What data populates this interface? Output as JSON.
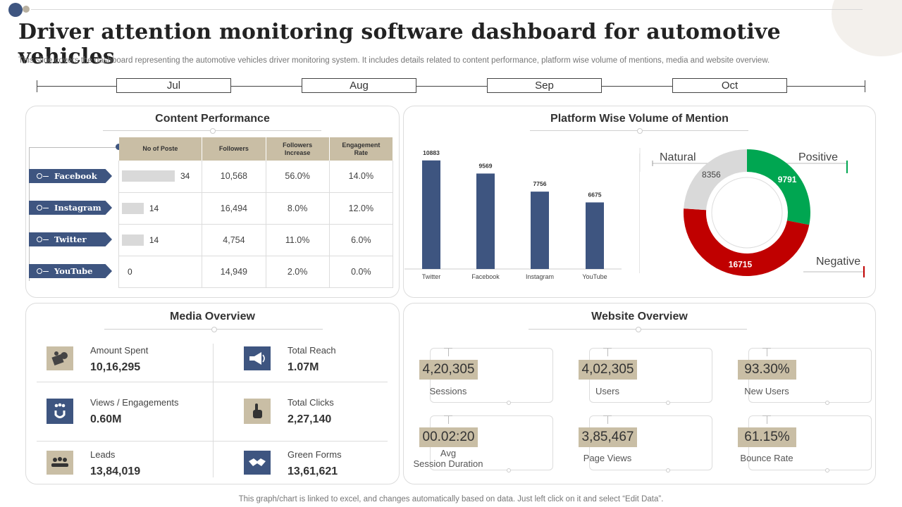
{
  "page": {
    "title": "Driver attention monitoring software dashboard for automotive vehicles",
    "subtitle": "This slide covers the dashboard representing the automotive vehicles driver monitoring system. It includes details related to content performance, platform wise volume of mentions, media and website overview.",
    "footer": "This graph/chart is linked to excel,  and changes automatically based on data. Just left click on it and select “Edit Data”."
  },
  "timeline": {
    "months": [
      "Jul",
      "Aug",
      "Sep",
      "Oct"
    ]
  },
  "content_performance": {
    "title": "Content Performance",
    "headers": [
      "No of Poste",
      "Followers",
      "Followers Increase",
      "Engagement Rate"
    ],
    "rows": [
      {
        "platform": "Facebook",
        "posts": "34",
        "posts_value": 34,
        "followers": "10,568",
        "increase": "56.0%",
        "engagement": "14.0%"
      },
      {
        "platform": "Instagram",
        "posts": "14",
        "posts_value": 14,
        "followers": "16,494",
        "increase": "8.0%",
        "engagement": "12.0%"
      },
      {
        "platform": "Twitter",
        "posts": "14",
        "posts_value": 14,
        "followers": "4,754",
        "increase": "11.0%",
        "engagement": "6.0%"
      },
      {
        "platform": "YouTube",
        "posts": "0",
        "posts_value": 0,
        "followers": "14,949",
        "increase": "2.0%",
        "engagement": "0.0%"
      }
    ]
  },
  "platform_mentions": {
    "title": "Platform Wise Volume of Mention",
    "bar_color": "#3e5580",
    "chart_data": [
      {
        "type": "bar",
        "categories": [
          "Twitter",
          "Facebook",
          "Instagram",
          "YouTube"
        ],
        "values": [
          10883,
          9569,
          7756,
          6675
        ],
        "ylim": [
          0,
          12000
        ]
      },
      {
        "type": "pie",
        "labels": [
          "Positive",
          "Negative",
          "Natural"
        ],
        "values": [
          9791,
          16715,
          8356
        ],
        "colors": [
          "#00a651",
          "#c00000",
          "#d9d9d9"
        ]
      }
    ]
  },
  "media_overview": {
    "title": "Media Overview",
    "items": [
      {
        "label": "Amount Spent",
        "value": "10,16,295",
        "icon": "money-icon",
        "icon_style": "tan"
      },
      {
        "label": "Total Reach",
        "value": "1.07M",
        "icon": "megaphone-icon",
        "icon_style": "dark"
      },
      {
        "label": "Views / Engagements",
        "value": "0.60M",
        "icon": "audience-magnet-icon",
        "icon_style": "dark"
      },
      {
        "label": "Total Clicks",
        "value": "2,27,140",
        "icon": "pointer-hand-icon",
        "icon_style": "tan"
      },
      {
        "label": "Leads",
        "value": "13,84,019",
        "icon": "leads-icon",
        "icon_style": "tan"
      },
      {
        "label": "Green Forms",
        "value": "13,61,621",
        "icon": "handshake-icon",
        "icon_style": "dark"
      }
    ]
  },
  "website_overview": {
    "title": "Website Overview",
    "items": [
      {
        "value": "4,20,305",
        "label": "Sessions"
      },
      {
        "value": "4,02,305",
        "label": "Users"
      },
      {
        "value": "93.30%",
        "label": "New Users"
      },
      {
        "value": "00.02:20",
        "label": "Avg\nSession Duration"
      },
      {
        "value": "3,85,467",
        "label": "Page Views"
      },
      {
        "value": "61.15%",
        "label": "Bounce Rate"
      }
    ]
  }
}
